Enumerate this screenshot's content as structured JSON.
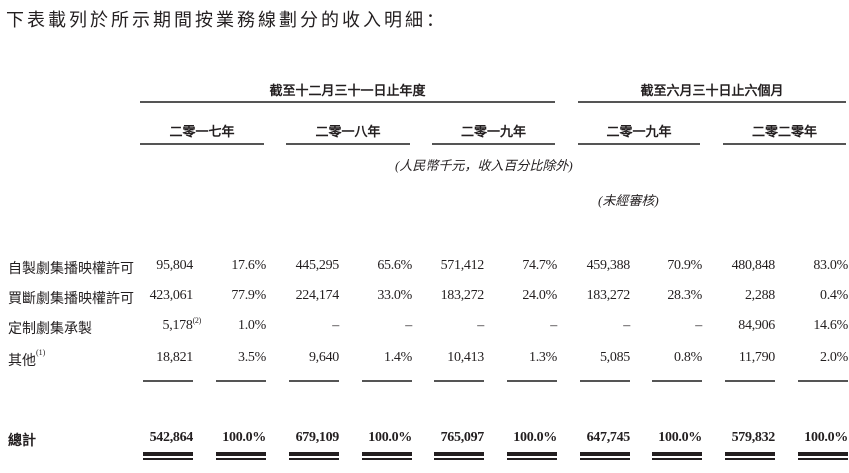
{
  "intro": "下表載列於所示期間按業務線劃分的收入明細：",
  "groups": [
    "截至十二月三十一日止年度",
    "截至六月三十日止六個月"
  ],
  "years": [
    "二零一七年",
    "二零一八年",
    "二零一九年",
    "二零一九年",
    "二零二零年"
  ],
  "unit_note": "(人民幣千元，收入百分比除外)",
  "unaudited_note": "(未經審核)",
  "rows": [
    {
      "label": "自製劇集播映權許可",
      "sup": "",
      "cells": [
        "95,804",
        "17.6%",
        "445,295",
        "65.6%",
        "571,412",
        "74.7%",
        "459,388",
        "70.9%",
        "480,848",
        "83.0%"
      ]
    },
    {
      "label": "買斷劇集播映權許可",
      "sup": "",
      "cells": [
        "423,061",
        "77.9%",
        "224,174",
        "33.0%",
        "183,272",
        "24.0%",
        "183,272",
        "28.3%",
        "2,288",
        "0.4%"
      ]
    },
    {
      "label": "定制劇集承製",
      "sup": "",
      "cells": [
        "5,178",
        "1.0%",
        "–",
        "–",
        "–",
        "–",
        "–",
        "–",
        "84,906",
        "14.6%"
      ],
      "cell0_sup": "(2)"
    },
    {
      "label": "其他",
      "sup": "(1)",
      "cells": [
        "18,821",
        "3.5%",
        "9,640",
        "1.4%",
        "10,413",
        "1.3%",
        "5,085",
        "0.8%",
        "11,790",
        "2.0%"
      ]
    }
  ],
  "total": {
    "label": "總計",
    "cells": [
      "542,864",
      "100.0%",
      "679,109",
      "100.0%",
      "765,097",
      "100.0%",
      "647,745",
      "100.0%",
      "579,832",
      "100.0%"
    ]
  }
}
